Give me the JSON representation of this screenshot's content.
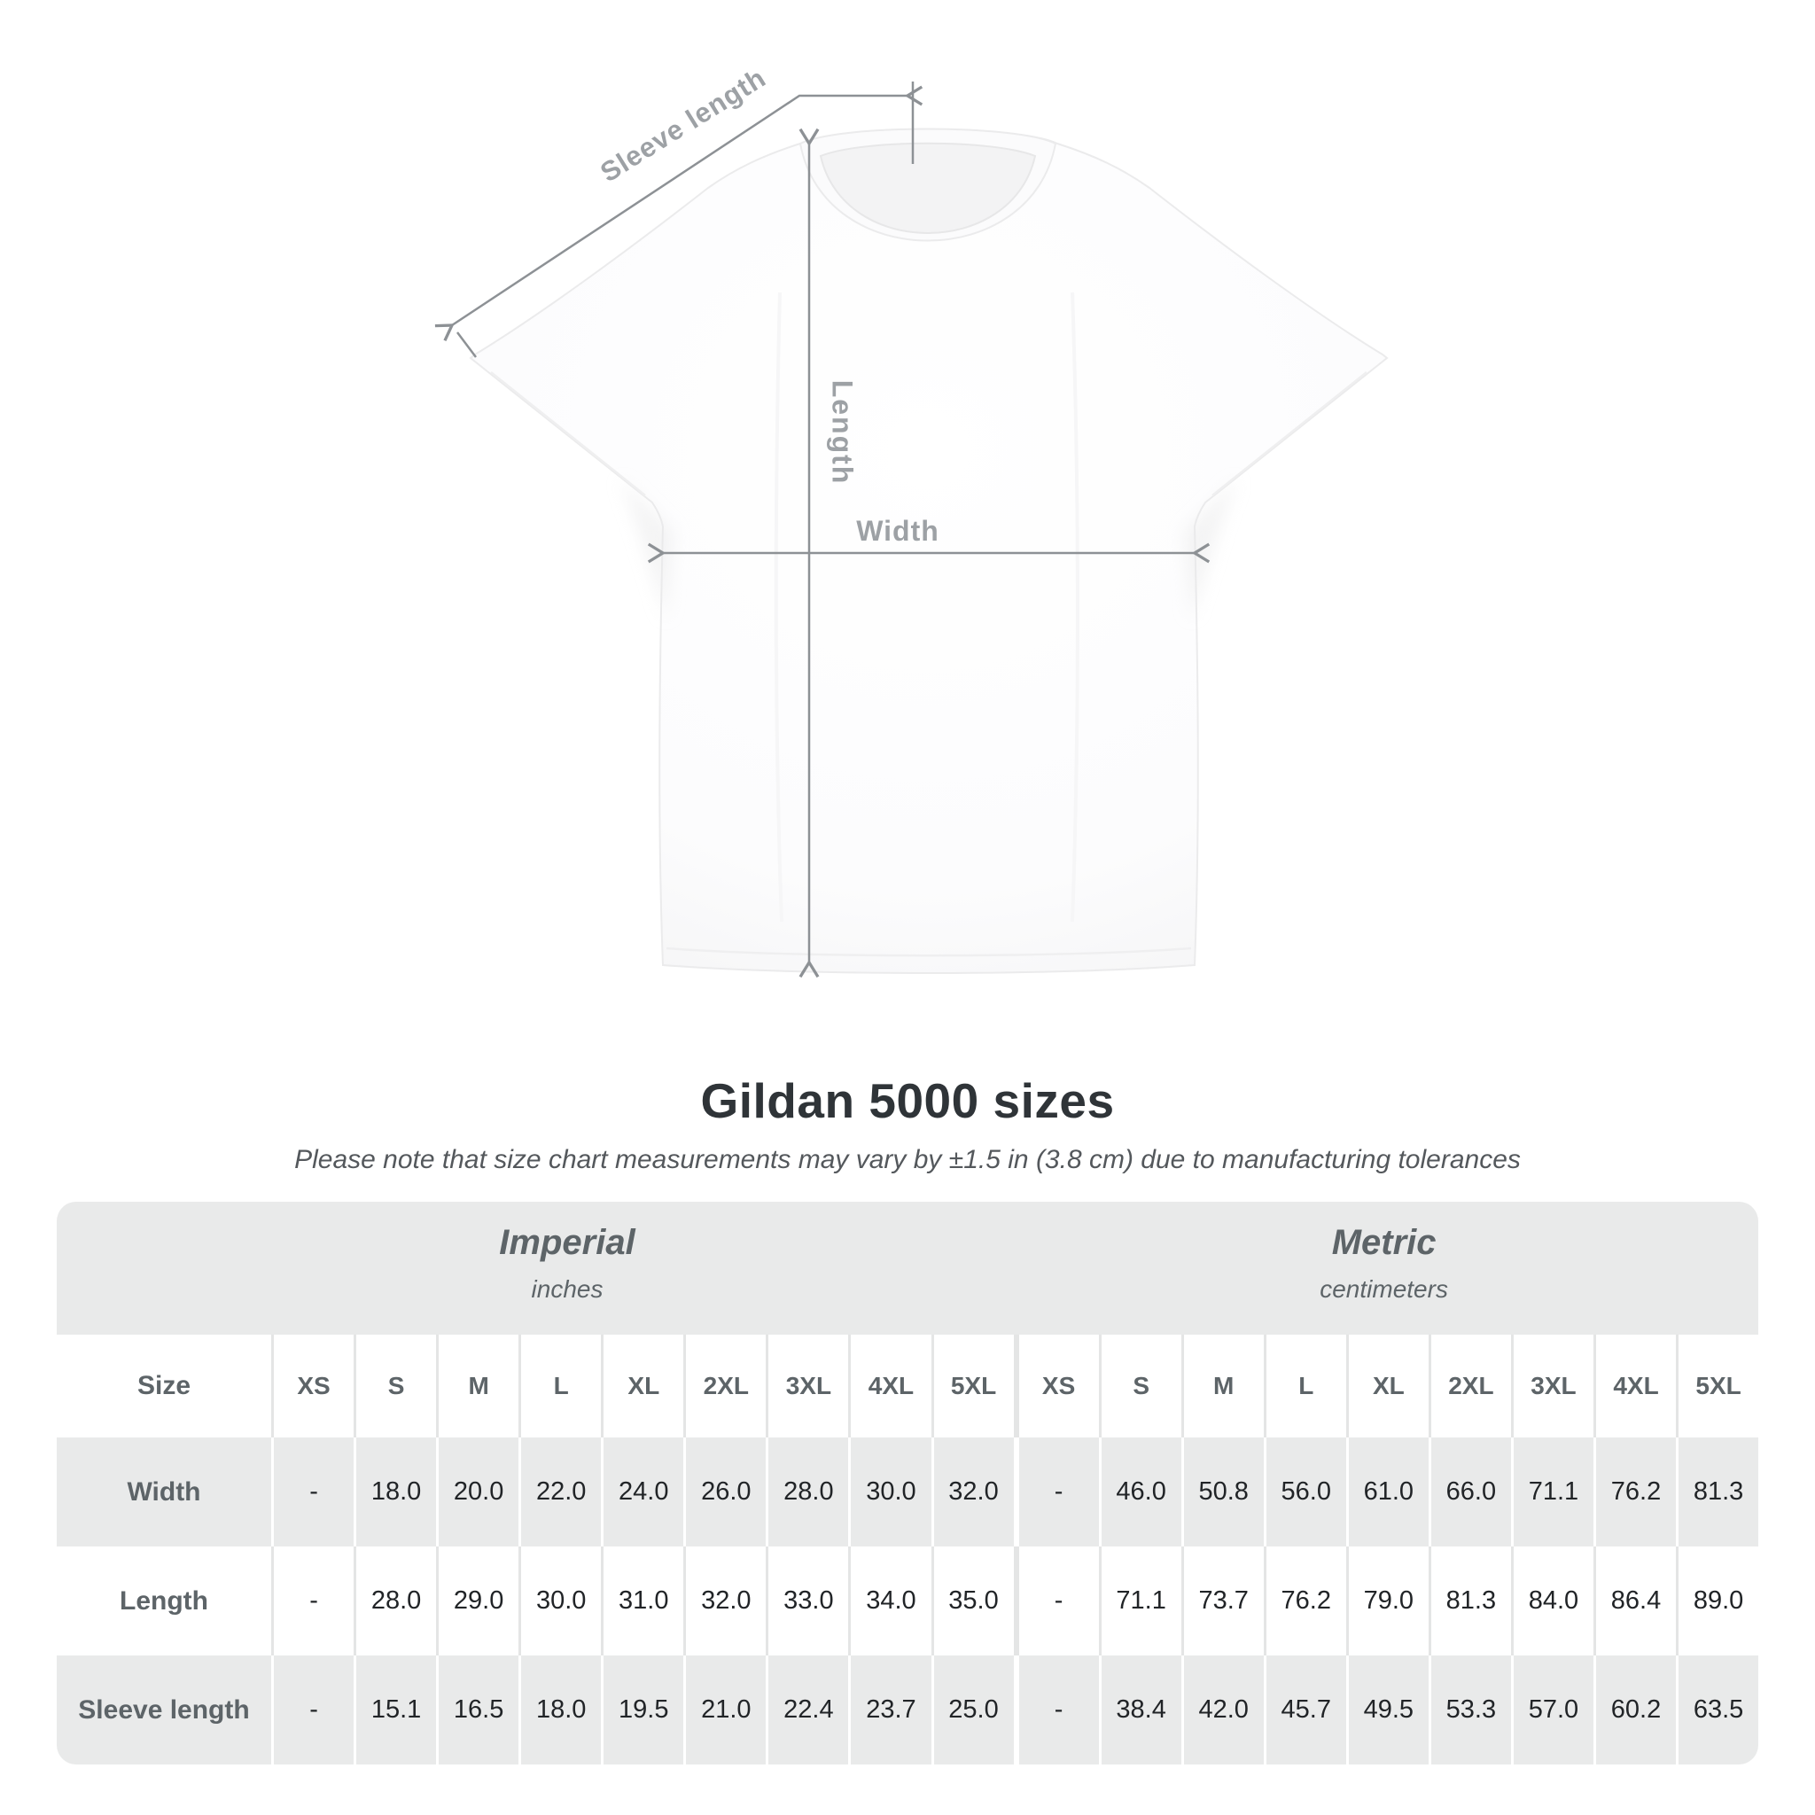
{
  "diagram": {
    "labels": {
      "sleeve_length": "Sleeve length",
      "length": "Length",
      "width": "Width"
    },
    "colors": {
      "line": "#8d9195",
      "label": "#9da1a5"
    }
  },
  "heading": {
    "title": "Gildan 5000 sizes",
    "subtitle": "Please note that size chart measurements may vary by ±1.5 in (3.8 cm) due to manufacturing tolerances"
  },
  "table": {
    "size_header": "Size",
    "groups": [
      {
        "title": "Imperial",
        "subtitle": "inches"
      },
      {
        "title": "Metric",
        "subtitle": "centimeters"
      }
    ],
    "columns": [
      "XS",
      "S",
      "M",
      "L",
      "XL",
      "2XL",
      "3XL",
      "4XL",
      "5XL",
      "XS",
      "S",
      "M",
      "L",
      "XL",
      "2XL",
      "3XL",
      "4XL",
      "5XL"
    ],
    "rows": [
      {
        "label": "Width",
        "values": [
          "-",
          "18.0",
          "20.0",
          "22.0",
          "24.0",
          "26.0",
          "28.0",
          "30.0",
          "32.0",
          "-",
          "46.0",
          "50.8",
          "56.0",
          "61.0",
          "66.0",
          "71.1",
          "76.2",
          "81.3"
        ]
      },
      {
        "label": "Length",
        "values": [
          "-",
          "28.0",
          "29.0",
          "30.0",
          "31.0",
          "32.0",
          "33.0",
          "34.0",
          "35.0",
          "-",
          "71.1",
          "73.7",
          "76.2",
          "79.0",
          "81.3",
          "84.0",
          "86.4",
          "89.0"
        ]
      },
      {
        "label": "Sleeve length",
        "values": [
          "-",
          "15.1",
          "16.5",
          "18.0",
          "19.5",
          "21.0",
          "22.4",
          "23.7",
          "25.0",
          "-",
          "38.4",
          "42.0",
          "45.7",
          "49.5",
          "53.3",
          "57.0",
          "60.2",
          "63.5"
        ]
      }
    ],
    "colors": {
      "band_bg": "#e9eaea",
      "alt_row_bg": "#e9eaea",
      "header_text": "#5d6468",
      "data_text": "#212427",
      "separator_light": "#e4e5e5"
    }
  }
}
